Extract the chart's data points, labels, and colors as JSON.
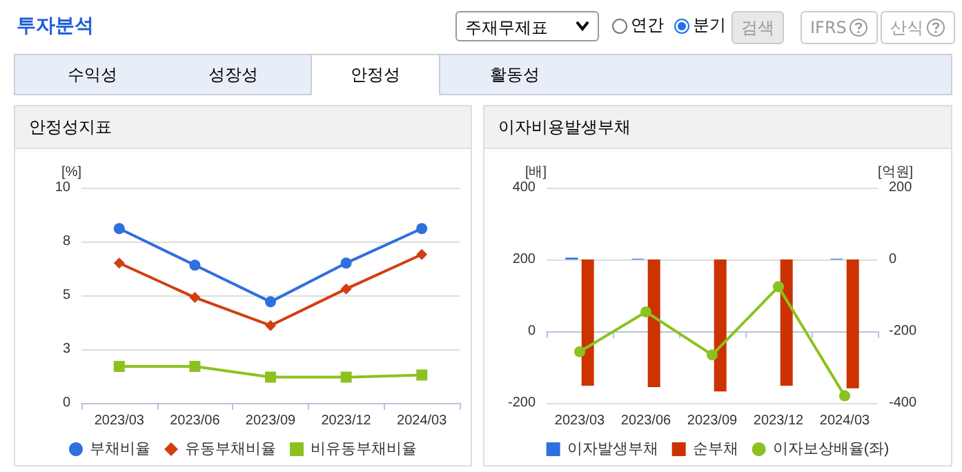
{
  "chart_data": [
    {
      "type": "other",
      "title": "투자분석",
      "annotations": [
        "주재무제표",
        "연간",
        "분기",
        "검색",
        "IFRS",
        "산식",
        "수익성",
        "성장성",
        "안정성",
        "활동성"
      ]
    },
    {
      "type": "line",
      "title": "안정성지표",
      "ylabel": "[%]",
      "categories": [
        "2023/03",
        "2023/06",
        "2023/09",
        "2023/12",
        "2024/03"
      ],
      "series": [
        {
          "name": "부채비율",
          "color": "#2f6fde",
          "marker": "circle",
          "values": [
            8.1,
            6.4,
            4.7,
            6.5,
            8.1
          ]
        },
        {
          "name": "유동부채비율",
          "color": "#d13f10",
          "marker": "diamond",
          "values": [
            6.5,
            4.9,
            3.6,
            5.3,
            6.9
          ]
        },
        {
          "name": "비유동부채비율",
          "color": "#8cc21f",
          "marker": "square",
          "values": [
            1.7,
            1.7,
            1.2,
            1.2,
            1.3
          ]
        }
      ],
      "ylim": [
        0,
        10
      ],
      "yticks": [
        0,
        {
          "value": 2.5,
          "label": "3"
        },
        5,
        {
          "value": 7.5,
          "label": "8"
        },
        10
      ],
      "grid": "y",
      "legend": "bottom"
    },
    {
      "type": "bar",
      "title": "이자비용발생부채",
      "ylabel": "[배]",
      "y2label": "[억원]",
      "categories": [
        "2023/03",
        "2023/06",
        "2023/09",
        "2023/12",
        "2024/03"
      ],
      "series": [
        {
          "name": "이자발생부채",
          "color": "#2f6fde",
          "axis": "y2",
          "values": [
            5,
            2,
            0,
            0,
            2
          ]
        },
        {
          "name": "순부채",
          "color": "#cc3300",
          "axis": "y2",
          "values": [
            -352,
            -356,
            -368,
            -352,
            -359
          ]
        },
        {
          "name": "이자보상배율(좌)",
          "color": "#8cc21f",
          "type": "line",
          "marker": "circle",
          "values": [
            -57,
            54,
            -66,
            124,
            -180
          ]
        }
      ],
      "ylim": [
        -200,
        400
      ],
      "yticks": [
        -200,
        0,
        200,
        400
      ],
      "y2lim": [
        -400,
        200
      ],
      "y2ticks": [
        -400,
        -200,
        0,
        200
      ],
      "grid": "y",
      "legend": "bottom"
    }
  ]
}
